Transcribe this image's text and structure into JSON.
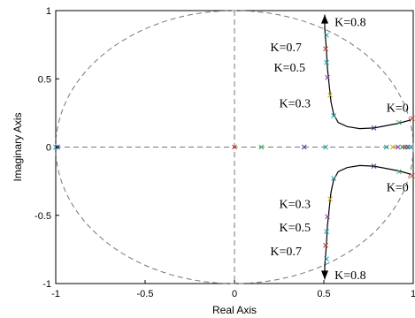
{
  "chart_data": {
    "type": "scatter",
    "title": "",
    "xlabel": "Real Axis",
    "ylabel": "Imaginary Axis",
    "xlim": [
      -1,
      1
    ],
    "ylim": [
      -1,
      1
    ],
    "x_ticks": [
      {
        "v": -1,
        "label": "-1"
      },
      {
        "v": -0.5,
        "label": "-0.5"
      },
      {
        "v": 0,
        "label": "0"
      },
      {
        "v": 0.5,
        "label": "0.5"
      },
      {
        "v": 1,
        "label": "1"
      }
    ],
    "y_ticks": [
      {
        "v": 1,
        "label": "1"
      },
      {
        "v": 0.5,
        "label": "0.5"
      },
      {
        "v": 0,
        "label": "0"
      },
      {
        "v": -0.5,
        "label": "-0.5"
      },
      {
        "v": -1,
        "label": "-1"
      }
    ],
    "grid": false,
    "reference_lines": [
      "unit circle",
      "x = 0",
      "y = 0"
    ],
    "series": [
      {
        "curve": "upper locus",
        "points": [
          [
            0.99,
            0.2
          ],
          [
            0.92,
            0.175
          ],
          [
            0.84,
            0.155
          ],
          [
            0.78,
            0.14
          ],
          [
            0.7,
            0.135
          ],
          [
            0.63,
            0.15
          ],
          [
            0.58,
            0.18
          ],
          [
            0.555,
            0.24
          ],
          [
            0.54,
            0.33
          ],
          [
            0.53,
            0.45
          ],
          [
            0.52,
            0.58
          ],
          [
            0.515,
            0.7
          ],
          [
            0.51,
            0.79
          ],
          [
            0.505,
            0.87
          ]
        ]
      },
      {
        "curve": "lower locus",
        "points": [
          [
            0.99,
            -0.2
          ],
          [
            0.92,
            -0.175
          ],
          [
            0.84,
            -0.155
          ],
          [
            0.78,
            -0.14
          ],
          [
            0.7,
            -0.135
          ],
          [
            0.63,
            -0.15
          ],
          [
            0.58,
            -0.18
          ],
          [
            0.555,
            -0.24
          ],
          [
            0.54,
            -0.33
          ],
          [
            0.53,
            -0.45
          ],
          [
            0.52,
            -0.58
          ],
          [
            0.515,
            -0.7
          ],
          [
            0.51,
            -0.79
          ],
          [
            0.505,
            -0.87
          ]
        ]
      }
    ],
    "markers": [
      {
        "x": 0.515,
        "y": 0.82,
        "c": "#1a9e9e"
      },
      {
        "x": 0.51,
        "y": 0.72,
        "c": "#c0392b"
      },
      {
        "x": 0.515,
        "y": 0.62,
        "c": "#1a9e9e"
      },
      {
        "x": 0.52,
        "y": 0.51,
        "c": "#7d3c98"
      },
      {
        "x": 0.535,
        "y": 0.38,
        "c": "#d4ac0d"
      },
      {
        "x": 0.555,
        "y": 0.23,
        "c": "#1a9e9e"
      },
      {
        "x": 0.78,
        "y": 0.14,
        "c": "#2c3e8c"
      },
      {
        "x": 0.92,
        "y": 0.18,
        "c": "#3aa655"
      },
      {
        "x": 0.995,
        "y": 0.21,
        "c": "#c0392b"
      },
      {
        "x": 0.515,
        "y": -0.82,
        "c": "#1a9e9e"
      },
      {
        "x": 0.51,
        "y": -0.72,
        "c": "#c0392b"
      },
      {
        "x": 0.515,
        "y": -0.62,
        "c": "#1a9e9e"
      },
      {
        "x": 0.52,
        "y": -0.51,
        "c": "#7d3c98"
      },
      {
        "x": 0.535,
        "y": -0.38,
        "c": "#d4ac0d"
      },
      {
        "x": 0.555,
        "y": -0.23,
        "c": "#1a9e9e"
      },
      {
        "x": 0.78,
        "y": -0.14,
        "c": "#2c3e8c"
      },
      {
        "x": 0.92,
        "y": -0.18,
        "c": "#3aa655"
      },
      {
        "x": 0.995,
        "y": -0.21,
        "c": "#c0392b"
      },
      {
        "x": -1.0,
        "y": 0,
        "c": "#1a9e9e"
      },
      {
        "x": -0.99,
        "y": 0,
        "c": "#2c3e8c"
      },
      {
        "x": 0.0,
        "y": 0,
        "c": "#c0392b"
      },
      {
        "x": 0.15,
        "y": 0,
        "c": "#3aa655"
      },
      {
        "x": 0.39,
        "y": 0,
        "c": "#2c3e8c"
      },
      {
        "x": 0.51,
        "y": 0,
        "c": "#1a9e9e"
      },
      {
        "x": 0.85,
        "y": 0,
        "c": "#1a9e9e"
      },
      {
        "x": 0.885,
        "y": 0,
        "c": "#d4ac0d"
      },
      {
        "x": 0.915,
        "y": 0,
        "c": "#7d3c98"
      },
      {
        "x": 0.94,
        "y": 0,
        "c": "#3aa655"
      },
      {
        "x": 0.955,
        "y": 0,
        "c": "#c0392b"
      },
      {
        "x": 0.97,
        "y": 0,
        "c": "#2c3e8c"
      },
      {
        "x": 0.985,
        "y": 0,
        "c": "#1a9e9e"
      }
    ],
    "annotations": [
      {
        "text": "K=0.8",
        "x": 0.56,
        "y": 0.92
      },
      {
        "text": "K=0.7",
        "x": 0.2,
        "y": 0.735
      },
      {
        "text": "K=0.5",
        "x": 0.22,
        "y": 0.585
      },
      {
        "text": "K=0.3",
        "x": 0.25,
        "y": 0.325
      },
      {
        "text": "K=0",
        "x": 0.85,
        "y": 0.29
      },
      {
        "text": "K=0.3",
        "x": 0.25,
        "y": -0.415
      },
      {
        "text": "K=0.5",
        "x": 0.25,
        "y": -0.585
      },
      {
        "text": "K=0.7",
        "x": 0.2,
        "y": -0.76
      },
      {
        "text": "K=0",
        "x": 0.85,
        "y": -0.29
      },
      {
        "text": "K=0.8",
        "x": 0.56,
        "y": -0.935
      }
    ],
    "arrows": [
      {
        "from": [
          0.505,
          0.86
        ],
        "to": [
          0.505,
          0.97
        ]
      },
      {
        "from": [
          0.505,
          -0.86
        ],
        "to": [
          0.505,
          -0.97
        ]
      }
    ]
  }
}
